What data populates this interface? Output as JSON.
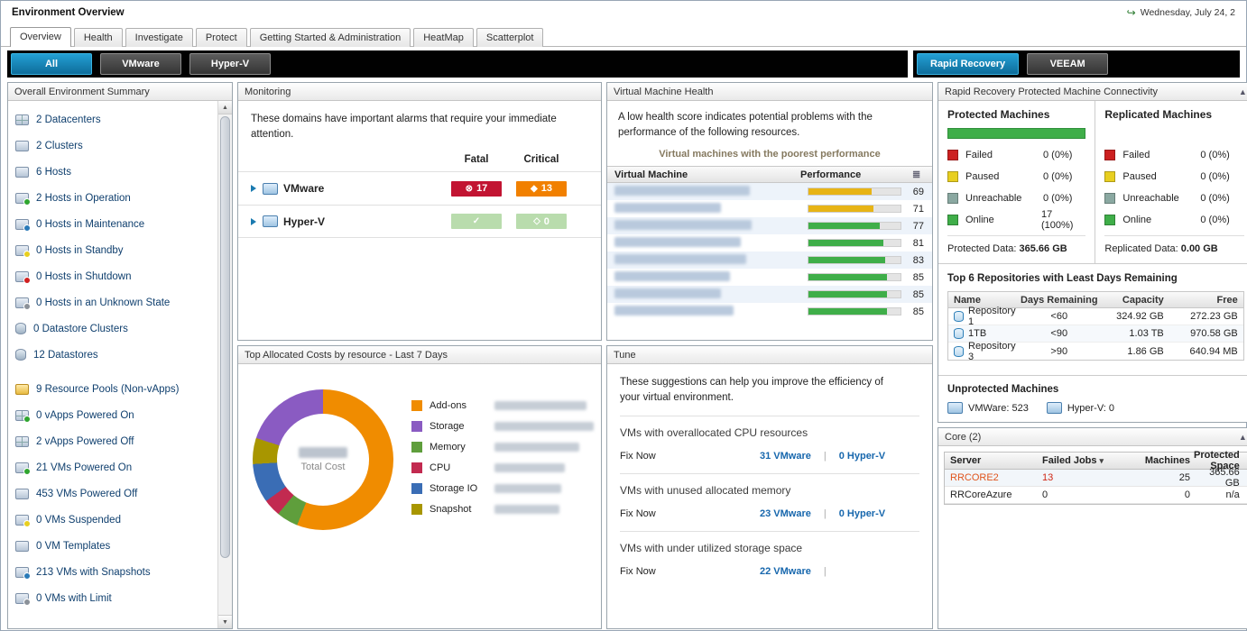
{
  "header": {
    "title": "Environment Overview",
    "datetime": "Wednesday, July 24, 2"
  },
  "tabs": {
    "items": [
      "Overview",
      "Health",
      "Investigate",
      "Protect",
      "Getting Started & Administration",
      "HeatMap",
      "Scatterplot"
    ]
  },
  "toolbar": {
    "all": "All",
    "vmware": "VMware",
    "hyperv": "Hyper-V",
    "rapid_recovery": "Rapid Recovery",
    "veeam": "VEEAM"
  },
  "summary": {
    "title": "Overall Environment Summary",
    "items": [
      {
        "label": "2 Datacenters"
      },
      {
        "label": "2 Clusters"
      },
      {
        "label": "6 Hosts"
      },
      {
        "label": "2 Hosts in Operation"
      },
      {
        "label": "0 Hosts in Maintenance"
      },
      {
        "label": "0 Hosts in Standby"
      },
      {
        "label": "0 Hosts in Shutdown"
      },
      {
        "label": "0 Hosts in an Unknown State"
      },
      {
        "label": "0 Datastore Clusters"
      },
      {
        "label": "12 Datastores"
      },
      {
        "label": "9 Resource Pools (Non-vApps)"
      },
      {
        "label": "0 vApps Powered On"
      },
      {
        "label": "2 vApps Powered Off"
      },
      {
        "label": "21 VMs Powered On"
      },
      {
        "label": "453 VMs Powered Off"
      },
      {
        "label": "0 VMs Suspended"
      },
      {
        "label": "0 VM Templates"
      },
      {
        "label": "213 VMs with Snapshots"
      },
      {
        "label": "0 VMs with Limit"
      }
    ]
  },
  "monitoring": {
    "title": "Monitoring",
    "message": "These domains have important alarms that require your immediate attention.",
    "col_fatal": "Fatal",
    "col_critical": "Critical",
    "rows": [
      {
        "name": "VMware",
        "fatal": "17",
        "critical": "13",
        "status": "alarm"
      },
      {
        "name": "Hyper-V",
        "fatal": "",
        "critical": "0",
        "status": "ok"
      }
    ]
  },
  "vm_health": {
    "title": "Virtual Machine Health",
    "message": "A low health score indicates potential problems with the performance of the following resources.",
    "subtitle": "Virtual machines with the poorest performance",
    "col_name": "Virtual Machine",
    "col_perf": "Performance",
    "rows": [
      {
        "value": 69,
        "color": "#e7b416"
      },
      {
        "value": 71,
        "color": "#e7b416"
      },
      {
        "value": 77,
        "color": "#3fae49"
      },
      {
        "value": 81,
        "color": "#3fae49"
      },
      {
        "value": 83,
        "color": "#3fae49"
      },
      {
        "value": 85,
        "color": "#3fae49"
      },
      {
        "value": 85,
        "color": "#3fae49"
      },
      {
        "value": 85,
        "color": "#3fae49"
      }
    ]
  },
  "costs": {
    "title": "Top Allocated Costs by resource - Last 7 Days",
    "center_sub": "Total Cost",
    "legend": [
      {
        "label": "Add-ons",
        "color": "#f08c00"
      },
      {
        "label": "Storage",
        "color": "#8a5bc2"
      },
      {
        "label": "Memory",
        "color": "#5f9e3c"
      },
      {
        "label": "CPU",
        "color": "#c22a50"
      },
      {
        "label": "Storage IO",
        "color": "#3a6db5"
      },
      {
        "label": "Snapshot",
        "color": "#a89600"
      }
    ],
    "arc": [
      {
        "color": "#f08c00",
        "pct": 56
      },
      {
        "color": "#5f9e3c",
        "pct": 5
      },
      {
        "color": "#c22a50",
        "pct": 4
      },
      {
        "color": "#3a6db5",
        "pct": 9
      },
      {
        "color": "#a89600",
        "pct": 6
      },
      {
        "color": "#8a5bc2",
        "pct": 20
      }
    ]
  },
  "tune": {
    "title": "Tune",
    "message": "These suggestions can help you improve the efficiency of your virtual environment.",
    "sections": [
      {
        "heading": "VMs with overallocated CPU resources",
        "action": "Fix Now",
        "vmware": "31 VMware",
        "hyperv": "0 Hyper-V"
      },
      {
        "heading": "VMs with unused allocated memory",
        "action": "Fix Now",
        "vmware": "23 VMware",
        "hyperv": "0 Hyper-V"
      },
      {
        "heading": "VMs with under utilized storage space",
        "action": "Fix Now",
        "vmware": "22 VMware",
        "hyperv": ""
      }
    ]
  },
  "rapid_recovery": {
    "title": "Rapid Recovery Protected Machine Connectivity",
    "protected": {
      "heading": "Protected Machines",
      "bar_pct": 100,
      "legend": [
        {
          "label": "Failed",
          "value": "0 (0%)",
          "color": "#cc2020"
        },
        {
          "label": "Paused",
          "value": "0 (0%)",
          "color": "#e8cf20"
        },
        {
          "label": "Unreachable",
          "value": "0 (0%)",
          "color": "#8aa8a1"
        },
        {
          "label": "Online",
          "value": "17 (100%)",
          "color": "#3fae49"
        }
      ],
      "data_label": "Protected Data:",
      "data_value": "365.66 GB"
    },
    "replicated": {
      "heading": "Replicated Machines",
      "legend": [
        {
          "label": "Failed",
          "value": "0 (0%)",
          "color": "#cc2020"
        },
        {
          "label": "Paused",
          "value": "0 (0%)",
          "color": "#e8cf20"
        },
        {
          "label": "Unreachable",
          "value": "0 (0%)",
          "color": "#8aa8a1"
        },
        {
          "label": "Online",
          "value": "0 (0%)",
          "color": "#3fae49"
        }
      ],
      "data_label": "Replicated Data:",
      "data_value": "0.00 GB"
    },
    "repositories": {
      "heading": "Top 6 Repositories with Least Days Remaining",
      "columns": [
        "Name",
        "Days Remaining",
        "Capacity",
        "Free"
      ],
      "rows": [
        {
          "name": "Repository 1",
          "days": "<60",
          "capacity": "324.92 GB",
          "free": "272.23 GB"
        },
        {
          "name": "1TB",
          "days": "<90",
          "capacity": "1.03 TB",
          "free": "970.58 GB"
        },
        {
          "name": "Repository 3",
          "days": ">90",
          "capacity": "1.86 GB",
          "free": "640.94 MB"
        }
      ]
    },
    "unprotected": {
      "heading": "Unprotected Machines",
      "vmware": "VMWare: 523",
      "hyperv": "Hyper-V: 0"
    }
  },
  "core": {
    "title": "Core (2)",
    "columns": [
      "Server",
      "Failed Jobs",
      "Machines",
      "Protected Space"
    ],
    "rows": [
      {
        "server": "RRCORE2",
        "failed": "13",
        "machines": "25",
        "space": "365.66 GB"
      },
      {
        "server": "RRCoreAzure",
        "failed": "0",
        "machines": "0",
        "space": "n/a"
      }
    ]
  }
}
